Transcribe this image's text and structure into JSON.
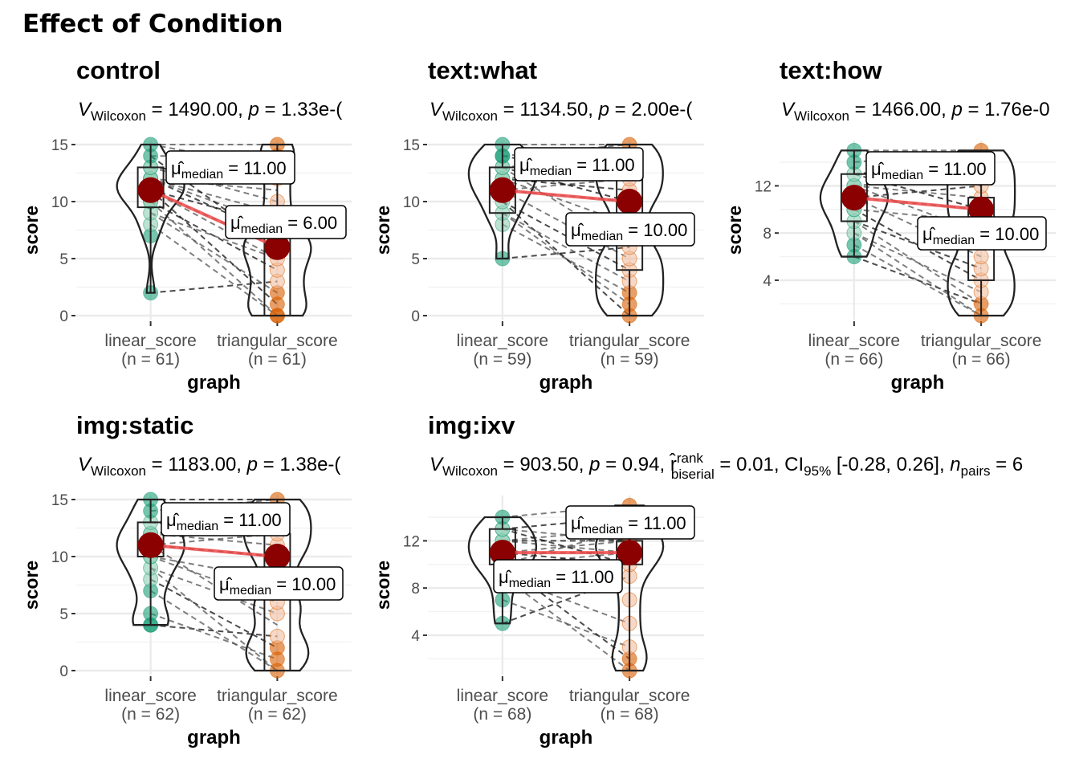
{
  "figure_title": "Effect of Condition",
  "colors": {
    "linear": "#1b9e77",
    "linear_light": "#8fcfb4",
    "triangular": "#d95f02",
    "triangular_light": "#f2bea0",
    "median_point": "#8b0000",
    "median_line": "#ee4b4b",
    "grid": "#ebebeb",
    "text": "#4d4d4d"
  },
  "chart_data": [
    {
      "type": "violin-box-paired",
      "panel_title": "control",
      "subtitle": {
        "stat": "Wilcoxon",
        "value": "1490.00",
        "p": "1.33e-("
      },
      "xlabel": "graph",
      "ylabel": "score",
      "categories": [
        "linear_score",
        "triangular_score"
      ],
      "counts": [
        "(n = 61)",
        "(n = 61)"
      ],
      "ylim": [
        0,
        15
      ],
      "yticks": [
        0,
        5,
        10,
        15
      ],
      "medians": [
        11,
        6
      ],
      "median_labels": [
        "11.00",
        "6.00"
      ],
      "box": [
        {
          "q1": 9.5,
          "q3": 13,
          "min": 2,
          "max": 15
        },
        {
          "q1": 0,
          "q3": 8,
          "min": 0,
          "max": 15
        }
      ],
      "points": [
        [
          2,
          7,
          8,
          9,
          10,
          10,
          11,
          11,
          11,
          11,
          12,
          12,
          12,
          13,
          13,
          14,
          15
        ],
        [
          0,
          0,
          1,
          2,
          3,
          4,
          5,
          6,
          6,
          7,
          8,
          10,
          12,
          14,
          15
        ]
      ],
      "pairs": [
        [
          2,
          3
        ],
        [
          8,
          0
        ],
        [
          9,
          2
        ],
        [
          10,
          4
        ],
        [
          11,
          5
        ],
        [
          11,
          6
        ],
        [
          12,
          7
        ],
        [
          12,
          9
        ],
        [
          13,
          10
        ],
        [
          13,
          12
        ],
        [
          14,
          14
        ],
        [
          15,
          15
        ],
        [
          11,
          1
        ],
        [
          10,
          0
        ],
        [
          12,
          8
        ],
        [
          14,
          6
        ],
        [
          15,
          13
        ],
        [
          9,
          5
        ],
        [
          11,
          8
        ],
        [
          12,
          11
        ]
      ]
    },
    {
      "type": "violin-box-paired",
      "panel_title": "text:what",
      "subtitle": {
        "stat": "Wilcoxon",
        "value": "1134.50",
        "p": "2.00e-("
      },
      "xlabel": "graph",
      "ylabel": "score",
      "categories": [
        "linear_score",
        "triangular_score"
      ],
      "counts": [
        "(n = 59)",
        "(n = 59)"
      ],
      "ylim": [
        0,
        15
      ],
      "yticks": [
        0,
        5,
        10,
        15
      ],
      "medians": [
        11,
        10
      ],
      "median_labels": [
        "11.00",
        "10.00"
      ],
      "box": [
        {
          "q1": 9,
          "q3": 13,
          "min": 5,
          "max": 15
        },
        {
          "q1": 4,
          "q3": 12,
          "min": 0,
          "max": 15
        }
      ],
      "points": [
        [
          5,
          8,
          9,
          10,
          11,
          11,
          12,
          12,
          13,
          13,
          14,
          14,
          15
        ],
        [
          0,
          1,
          2,
          3,
          4,
          5,
          6,
          8,
          10,
          11,
          12,
          13,
          14,
          15
        ]
      ],
      "pairs": [
        [
          5,
          6
        ],
        [
          8,
          2
        ],
        [
          9,
          1
        ],
        [
          10,
          4
        ],
        [
          11,
          10
        ],
        [
          11,
          12
        ],
        [
          12,
          11
        ],
        [
          12,
          13
        ],
        [
          13,
          14
        ],
        [
          13,
          10
        ],
        [
          14,
          15
        ],
        [
          15,
          15
        ],
        [
          10,
          0
        ],
        [
          11,
          5
        ],
        [
          12,
          8
        ],
        [
          14,
          12
        ],
        [
          9,
          3
        ],
        [
          13,
          6
        ]
      ]
    },
    {
      "type": "violin-box-paired",
      "panel_title": "text:how",
      "subtitle": {
        "stat": "Wilcoxon",
        "value": "1466.00",
        "p": "1.76e-0"
      },
      "xlabel": "graph",
      "ylabel": "score",
      "categories": [
        "linear_score",
        "triangular_score"
      ],
      "counts": [
        "(n = 66)",
        "(n = 66)"
      ],
      "ylim": [
        1,
        15.5
      ],
      "yticks": [
        4,
        8,
        12
      ],
      "medians": [
        11,
        10
      ],
      "median_labels": [
        "11.00",
        "10.00"
      ],
      "box": [
        {
          "q1": 9,
          "q3": 13,
          "min": 6,
          "max": 15
        },
        {
          "q1": 4,
          "q3": 11,
          "min": 1,
          "max": 15
        }
      ],
      "points": [
        [
          6,
          7,
          8,
          9,
          10,
          10,
          11,
          11,
          12,
          12,
          13,
          14,
          15
        ],
        [
          1,
          2,
          3,
          4,
          5,
          6,
          8,
          9,
          10,
          11,
          12,
          13,
          14,
          15
        ]
      ],
      "pairs": [
        [
          6,
          2
        ],
        [
          7,
          1
        ],
        [
          8,
          3
        ],
        [
          9,
          5
        ],
        [
          10,
          9
        ],
        [
          11,
          10
        ],
        [
          11,
          12
        ],
        [
          12,
          11
        ],
        [
          12,
          13
        ],
        [
          13,
          14
        ],
        [
          14,
          15
        ],
        [
          15,
          15
        ],
        [
          10,
          4
        ],
        [
          9,
          2
        ],
        [
          12,
          8
        ],
        [
          13,
          10
        ],
        [
          11,
          6
        ],
        [
          8,
          1
        ]
      ]
    },
    {
      "type": "violin-box-paired",
      "panel_title": "img:static",
      "subtitle": {
        "stat": "Wilcoxon",
        "value": "1183.00",
        "p": "1.38e-("
      },
      "xlabel": "graph",
      "ylabel": "score",
      "categories": [
        "linear_score",
        "triangular_score"
      ],
      "counts": [
        "(n = 62)",
        "(n = 62)"
      ],
      "ylim": [
        0,
        15
      ],
      "yticks": [
        0,
        5,
        10,
        15
      ],
      "medians": [
        11,
        10
      ],
      "median_labels": [
        "11.00",
        "10.00"
      ],
      "box": [
        {
          "q1": 10,
          "q3": 13,
          "min": 4,
          "max": 15
        },
        {
          "q1": 0,
          "q3": 12,
          "min": 0,
          "max": 15
        }
      ],
      "points": [
        [
          4,
          4,
          5,
          7,
          8,
          9,
          10,
          10,
          11,
          11,
          12,
          12,
          13,
          14,
          15
        ],
        [
          0,
          1,
          2,
          3,
          5,
          6,
          8,
          10,
          11,
          12,
          13,
          14,
          15
        ]
      ],
      "pairs": [
        [
          4,
          3
        ],
        [
          5,
          1
        ],
        [
          7,
          0
        ],
        [
          8,
          2
        ],
        [
          9,
          5
        ],
        [
          10,
          6
        ],
        [
          11,
          10
        ],
        [
          11,
          12
        ],
        [
          12,
          11
        ],
        [
          12,
          13
        ],
        [
          13,
          14
        ],
        [
          14,
          15
        ],
        [
          15,
          15
        ],
        [
          10,
          8
        ],
        [
          11,
          4
        ],
        [
          13,
          12
        ],
        [
          9,
          0
        ]
      ]
    },
    {
      "type": "violin-box-paired",
      "panel_title": "img:ixv",
      "subtitle": {
        "stat": "Wilcoxon",
        "value": "903.50",
        "p": "0.94",
        "extra": ", r̂",
        "r_sup": "rank",
        "r_sub": "biserial",
        "r_value": " = 0.01, CI",
        "ci_sub": "95%",
        "ci": " [-0.28, 0.26], ",
        "n_label": "n",
        "n_sub": "pairs",
        "n_tail": " = 6"
      },
      "xlabel": "graph",
      "ylabel": "score",
      "categories": [
        "linear_score",
        "triangular_score"
      ],
      "counts": [
        "(n = 68)",
        "(n = 68)"
      ],
      "ylim": [
        1,
        15.5
      ],
      "yticks": [
        4,
        8,
        12
      ],
      "medians": [
        11,
        11
      ],
      "median_labels": [
        "11.00",
        "11.00"
      ],
      "box": [
        {
          "q1": 10,
          "q3": 13,
          "min": 5,
          "max": 14
        },
        {
          "q1": 10,
          "q3": 12,
          "min": 1,
          "max": 15
        }
      ],
      "points": [
        [
          5,
          7,
          9,
          10,
          10,
          11,
          11,
          12,
          12,
          13,
          13,
          14
        ],
        [
          1,
          2,
          3,
          5,
          7,
          9,
          10,
          11,
          11,
          12,
          12,
          13,
          14,
          15
        ]
      ],
      "pairs": [
        [
          5,
          9
        ],
        [
          7,
          3
        ],
        [
          9,
          1
        ],
        [
          10,
          2
        ],
        [
          10,
          11
        ],
        [
          11,
          12
        ],
        [
          11,
          10
        ],
        [
          12,
          13
        ],
        [
          12,
          11
        ],
        [
          13,
          14
        ],
        [
          13,
          12
        ],
        [
          14,
          15
        ],
        [
          12,
          12
        ],
        [
          11,
          11
        ],
        [
          10,
          13
        ],
        [
          13,
          10
        ],
        [
          9,
          5
        ]
      ]
    }
  ]
}
